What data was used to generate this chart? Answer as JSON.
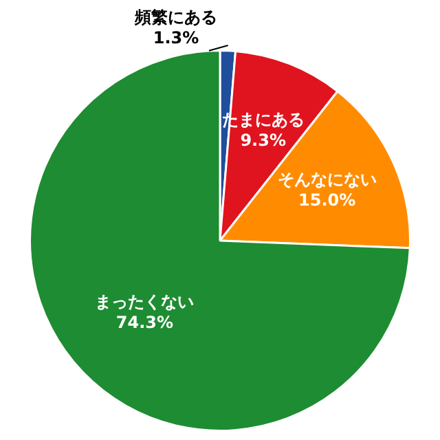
{
  "chart_data": {
    "type": "pie",
    "categories": [
      "頻繁にある",
      "たまにある",
      "そんなにない",
      "まったくない"
    ],
    "values": [
      1.3,
      9.3,
      15.0,
      74.3
    ],
    "colors": [
      "#1f4e9c",
      "#e0141e",
      "#ff8c00",
      "#1e8c32"
    ],
    "value_labels": [
      "1.3%",
      "9.3%",
      "15.0%",
      "74.3%"
    ],
    "legend": false
  }
}
